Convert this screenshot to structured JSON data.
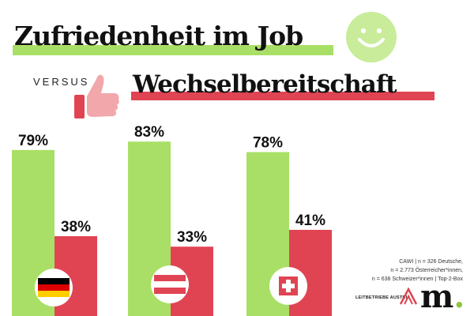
{
  "title": {
    "line1": "Zufriedenheit im Job",
    "versus": "VERSUS",
    "line2": "Wechselbereitschaft"
  },
  "colors": {
    "green": "#a9df66",
    "red": "#e04453",
    "smiley": "#c8ec9a",
    "thumb": "#f2a7ab"
  },
  "icons": [
    "smiley-icon",
    "thumbs-up-icon",
    "flag-germany-icon",
    "flag-austria-icon",
    "flag-switzerland-icon"
  ],
  "chart_data": {
    "type": "bar",
    "categories": [
      "Deutschland",
      "Österreich",
      "Schweiz"
    ],
    "series": [
      {
        "name": "Zufriedenheit im Job",
        "values": [
          79,
          83,
          78
        ],
        "labels": [
          "79%",
          "83%",
          "78%"
        ]
      },
      {
        "name": "Wechselbereitschaft",
        "values": [
          38,
          33,
          41
        ],
        "labels": [
          "38%",
          "33%",
          "41%"
        ]
      }
    ],
    "ylim": [
      0,
      100
    ],
    "title": "Zufriedenheit im Job versus Wechselbereitschaft",
    "xlabel": "",
    "ylabel": ""
  },
  "source": {
    "line1": "CAWI | n = 326 Deutsche,",
    "line2": "n = 2.773 Österreicher*innen,",
    "line3": "n = 638 Schweizer*innen | Top-2-Box"
  },
  "logos": {
    "leitbetriebe": "LEITBETRIEBE AUSTRIA",
    "m": "m",
    "m_dot": "."
  }
}
